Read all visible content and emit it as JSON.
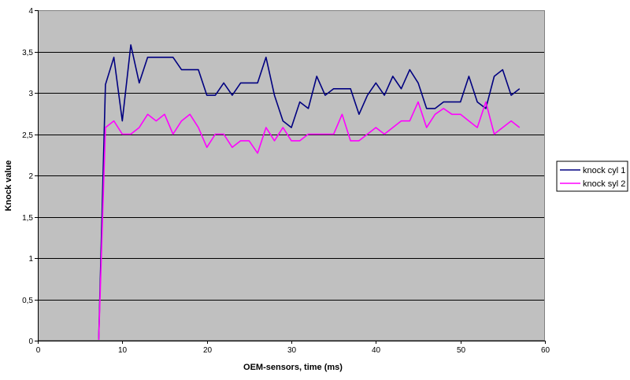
{
  "chart_data": {
    "type": "line",
    "title": "",
    "xlabel": "OEM-sensors, time (ms)",
    "ylabel": "Knock value",
    "xlim": [
      0,
      60
    ],
    "ylim": [
      0,
      4
    ],
    "x_ticks": [
      "0",
      "10",
      "20",
      "30",
      "40",
      "50",
      "60"
    ],
    "y_ticks": [
      "0",
      "0,5",
      "1",
      "1,5",
      "2",
      "2,5",
      "3",
      "3,5",
      "4"
    ],
    "grid": "horizontal",
    "legend_position": "right",
    "plot_background": "#c0c0c0",
    "series": [
      {
        "name": "knock cyl 1",
        "color": "#000080",
        "x": [
          7.2,
          8,
          9,
          10,
          11,
          12,
          13,
          14,
          15,
          16,
          17,
          18,
          19,
          20,
          21,
          22,
          23,
          24,
          25,
          26,
          27,
          28,
          29,
          30,
          31,
          32,
          33,
          34,
          35,
          36,
          37,
          38,
          39,
          40,
          41,
          42,
          43,
          44,
          45,
          46,
          47,
          48,
          49,
          50,
          51,
          52,
          53,
          54,
          55,
          56,
          57
        ],
        "y": [
          0,
          3.1,
          3.43,
          2.66,
          3.58,
          3.12,
          3.43,
          3.43,
          3.43,
          3.43,
          3.28,
          3.28,
          3.28,
          2.97,
          2.97,
          3.12,
          2.97,
          3.12,
          3.12,
          3.12,
          3.43,
          2.97,
          2.66,
          2.58,
          2.89,
          2.81,
          3.2,
          2.97,
          3.05,
          3.05,
          3.05,
          2.74,
          2.97,
          3.12,
          2.97,
          3.2,
          3.05,
          3.28,
          3.12,
          2.81,
          2.81,
          2.89,
          2.89,
          2.89,
          3.2,
          2.89,
          2.81,
          3.2,
          3.28,
          2.97,
          3.05
        ]
      },
      {
        "name": "knock syl 2",
        "color": "#ff00ff",
        "x": [
          7.2,
          8,
          9,
          10,
          11,
          12,
          13,
          14,
          15,
          16,
          17,
          18,
          19,
          20,
          21,
          22,
          23,
          24,
          25,
          26,
          27,
          28,
          29,
          30,
          31,
          32,
          33,
          34,
          35,
          36,
          37,
          38,
          39,
          40,
          41,
          42,
          43,
          44,
          45,
          46,
          47,
          48,
          49,
          50,
          51,
          52,
          53,
          54,
          55,
          56,
          57
        ],
        "y": [
          0,
          2.58,
          2.66,
          2.5,
          2.5,
          2.58,
          2.74,
          2.66,
          2.74,
          2.5,
          2.66,
          2.74,
          2.58,
          2.34,
          2.5,
          2.5,
          2.34,
          2.42,
          2.42,
          2.27,
          2.58,
          2.42,
          2.58,
          2.42,
          2.42,
          2.5,
          2.5,
          2.5,
          2.5,
          2.74,
          2.42,
          2.42,
          2.5,
          2.58,
          2.5,
          2.58,
          2.66,
          2.66,
          2.89,
          2.58,
          2.74,
          2.81,
          2.74,
          2.74,
          2.66,
          2.58,
          2.89,
          2.5,
          2.58,
          2.66,
          2.58
        ]
      }
    ]
  }
}
